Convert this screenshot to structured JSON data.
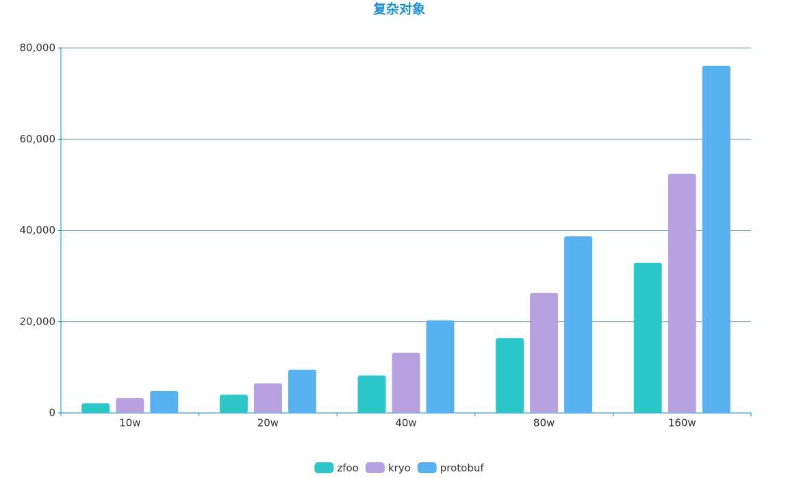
{
  "chart_data": {
    "type": "bar",
    "title": "复杂对象",
    "categories": [
      "10w",
      "20w",
      "40w",
      "80w",
      "160w"
    ],
    "series": [
      {
        "name": "zfoo",
        "color": "#2ec7c9",
        "values": [
          2100,
          4000,
          8200,
          16400,
          32900
        ]
      },
      {
        "name": "kryo",
        "color": "#b6a2de",
        "values": [
          3300,
          6500,
          13200,
          26300,
          52400
        ]
      },
      {
        "name": "protobuf",
        "color": "#5ab1ef",
        "values": [
          4800,
          9500,
          20300,
          38700,
          76100
        ]
      }
    ],
    "ylim": [
      0,
      80000
    ],
    "yticks": [
      0,
      {
        "value": 20000,
        "label": "20,000"
      },
      {
        "value": 40000,
        "label": "40,000"
      },
      {
        "value": 60000,
        "label": "60,000"
      },
      {
        "value": 80000,
        "label": "80,000"
      }
    ],
    "grid": true,
    "legend": "bottom"
  }
}
